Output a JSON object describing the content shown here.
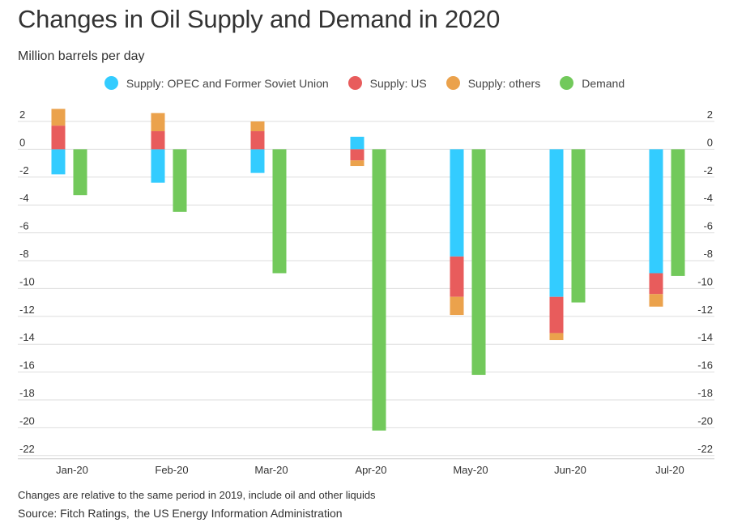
{
  "chart_data": {
    "type": "bar",
    "title": "Changes in Oil Supply and Demand in 2020",
    "subtitle": "Million barrels per day",
    "categories": [
      "Jan-20",
      "Feb-20",
      "Mar-20",
      "Apr-20",
      "May-20",
      "Jun-20",
      "Jul-20"
    ],
    "supply_stacks": [
      {
        "name": "Supply: OPEC and Former Soviet Union",
        "color": "#33ccff",
        "values": [
          -1.8,
          -2.4,
          -1.7,
          0.9,
          -7.7,
          -10.6,
          -8.9
        ]
      },
      {
        "name": "Supply: US",
        "color": "#e85c5c",
        "values": [
          1.7,
          1.3,
          1.3,
          -0.8,
          -2.9,
          -2.6,
          -1.5
        ]
      },
      {
        "name": "Supply: others",
        "color": "#eba24c",
        "values": [
          1.2,
          1.3,
          0.7,
          -0.4,
          -1.3,
          -0.5,
          -0.9
        ]
      }
    ],
    "series": [
      {
        "name": "Supply: OPEC and Former Soviet Union",
        "color": "#33ccff",
        "values": [
          -1.8,
          -2.4,
          -1.7,
          0.9,
          -7.7,
          -10.6,
          -8.9
        ]
      },
      {
        "name": "Supply: US",
        "color": "#e85c5c",
        "values": [
          1.7,
          1.3,
          1.3,
          -0.8,
          -2.9,
          -2.6,
          -1.5
        ]
      },
      {
        "name": "Supply: others",
        "color": "#eba24c",
        "values": [
          1.2,
          1.3,
          0.7,
          -0.4,
          -1.3,
          -0.5,
          -0.9
        ]
      },
      {
        "name": "Demand",
        "color": "#72c95b",
        "values": [
          -3.3,
          -4.5,
          -8.9,
          -20.2,
          -16.2,
          -11.0,
          -9.1
        ]
      }
    ],
    "demand": {
      "name": "Demand",
      "color": "#72c95b",
      "values": [
        -3.3,
        -4.5,
        -8.9,
        -20.2,
        -16.2,
        -11.0,
        -9.1
      ]
    },
    "yticks": [
      2,
      0,
      -2,
      -4,
      -6,
      -8,
      -10,
      -12,
      -14,
      -16,
      -18,
      -20,
      -22
    ],
    "ylim": [
      -22,
      2
    ],
    "ylabel": "Million barrels per day",
    "xlabel": "",
    "grid": true,
    "legend_position": "top-center"
  },
  "footer": {
    "note": "Changes are relative to the same period in 2019, include oil and other liquids",
    "source_prefix": "Source: Fitch Ratings,",
    "source_suffix": "the US Energy Information Administration"
  }
}
